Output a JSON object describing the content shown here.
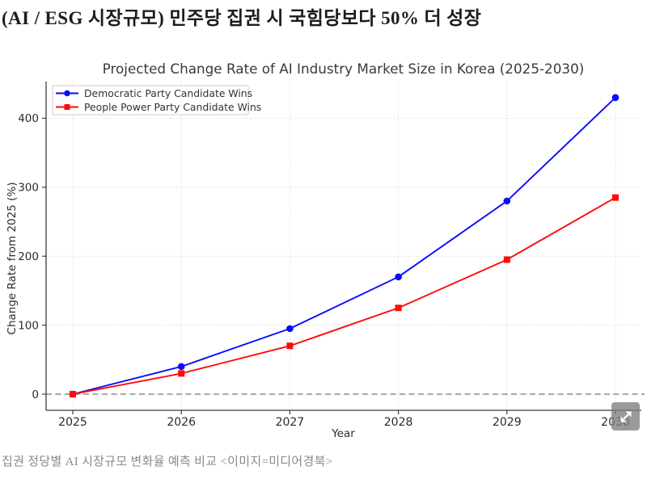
{
  "page": {
    "headline": "(AI / ESG 시장규모) 민주당 집권 시 국힘당보다 50% 더 성장",
    "caption": "집권 정당별 AI 시장규모 변화율 예측 비교 <이미지=미디어경북>"
  },
  "chart_data": {
    "type": "line",
    "title": "Projected Change Rate of AI Industry Market Size in Korea (2025-2030)",
    "xlabel": "Year",
    "ylabel": "Change Rate from 2025 (%)",
    "x": [
      2025,
      2026,
      2027,
      2028,
      2029,
      2030
    ],
    "series": [
      {
        "name": "Democratic Party Candidate Wins",
        "color": "#0a0aff",
        "marker": "circle",
        "values": [
          0,
          40,
          95,
          170,
          280,
          430
        ]
      },
      {
        "name": "People Power Party Candidate Wins",
        "color": "#ff0a0a",
        "marker": "square",
        "values": [
          0,
          30,
          70,
          125,
          195,
          285
        ]
      }
    ],
    "yticks": [
      0,
      100,
      200,
      300,
      400
    ],
    "xticks": [
      2025,
      2026,
      2027,
      2028,
      2029,
      2030
    ],
    "ylim": [
      -27,
      453
    ],
    "xlim": [
      2024.75,
      2030.25
    ],
    "grid": true,
    "gridline_style": "dotted",
    "legend_position": "upper left",
    "zero_line_y": 0,
    "colors": {
      "grid": "#d2d2d2",
      "zero_line": "#8c8c8c",
      "axis": "#3c3c3c",
      "tick_text": "#2b2b2b",
      "title_text": "#3a3a3a",
      "legend_border": "#cccccc",
      "legend_bg": "#ffffff"
    }
  },
  "icons": {
    "expand": "diagonal-double-arrow"
  }
}
